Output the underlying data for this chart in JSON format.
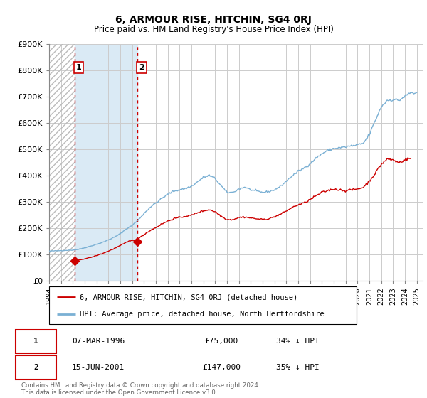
{
  "title": "6, ARMOUR RISE, HITCHIN, SG4 0RJ",
  "subtitle": "Price paid vs. HM Land Registry's House Price Index (HPI)",
  "ylim": [
    0,
    900000
  ],
  "yticks": [
    0,
    100000,
    200000,
    300000,
    400000,
    500000,
    600000,
    700000,
    800000,
    900000
  ],
  "ytick_labels": [
    "£0",
    "£100K",
    "£200K",
    "£300K",
    "£400K",
    "£500K",
    "£600K",
    "£700K",
    "£800K",
    "£900K"
  ],
  "xlim_start": 1994.0,
  "xlim_end": 2025.5,
  "transaction1_x": 1996.17,
  "transaction1_y": 75000,
  "transaction2_x": 2001.46,
  "transaction2_y": 147000,
  "red_line_color": "#cc0000",
  "blue_line_color": "#7ab0d4",
  "hatch_edgecolor": "#aaaaaa",
  "hatch_bg": "#e8e8e8",
  "between_color": "#daeaf5",
  "grid_color": "#cccccc",
  "background_color": "#ffffff",
  "legend_red_label": "6, ARMOUR RISE, HITCHIN, SG4 0RJ (detached house)",
  "legend_blue_label": "HPI: Average price, detached house, North Hertfordshire",
  "table_row1": [
    "1",
    "07-MAR-1996",
    "£75,000",
    "34% ↓ HPI"
  ],
  "table_row2": [
    "2",
    "15-JUN-2001",
    "£147,000",
    "35% ↓ HPI"
  ],
  "footnote": "Contains HM Land Registry data © Crown copyright and database right 2024.\nThis data is licensed under the Open Government Licence v3.0."
}
